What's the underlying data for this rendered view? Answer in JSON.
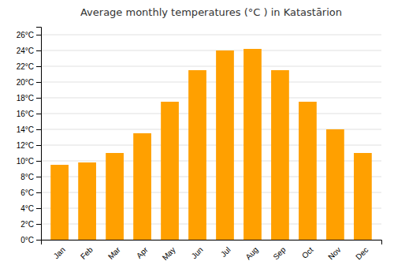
{
  "chart_data": {
    "type": "bar",
    "title": "Average monthly temperatures (°C ) in Katastārion",
    "categories": [
      "Jan",
      "Feb",
      "Mar",
      "Apr",
      "May",
      "Jun",
      "Jul",
      "Aug",
      "Sep",
      "Oct",
      "Nov",
      "Dec"
    ],
    "values": [
      9.5,
      9.8,
      11.0,
      13.5,
      17.5,
      21.5,
      24.0,
      24.2,
      21.5,
      17.5,
      14.0,
      11.0
    ],
    "color": "#FFA000",
    "ylim": [
      0,
      27
    ],
    "yticks": [
      {
        "value": 0,
        "label": "0°C"
      },
      {
        "value": 2,
        "label": "2°C"
      },
      {
        "value": 4,
        "label": "4°C"
      },
      {
        "value": 6,
        "label": "6°C"
      },
      {
        "value": 8,
        "label": "8°C"
      },
      {
        "value": 10,
        "label": "10°C"
      },
      {
        "value": 12,
        "label": "12°C"
      },
      {
        "value": 14,
        "label": "14°C"
      },
      {
        "value": 16,
        "label": "16°C"
      },
      {
        "value": 18,
        "label": "18°C"
      },
      {
        "value": 20,
        "label": "20°C"
      },
      {
        "value": 22,
        "label": "22°C"
      },
      {
        "value": 24,
        "label": "24°C"
      },
      {
        "value": 26,
        "label": "26°C"
      }
    ],
    "grid": true
  }
}
